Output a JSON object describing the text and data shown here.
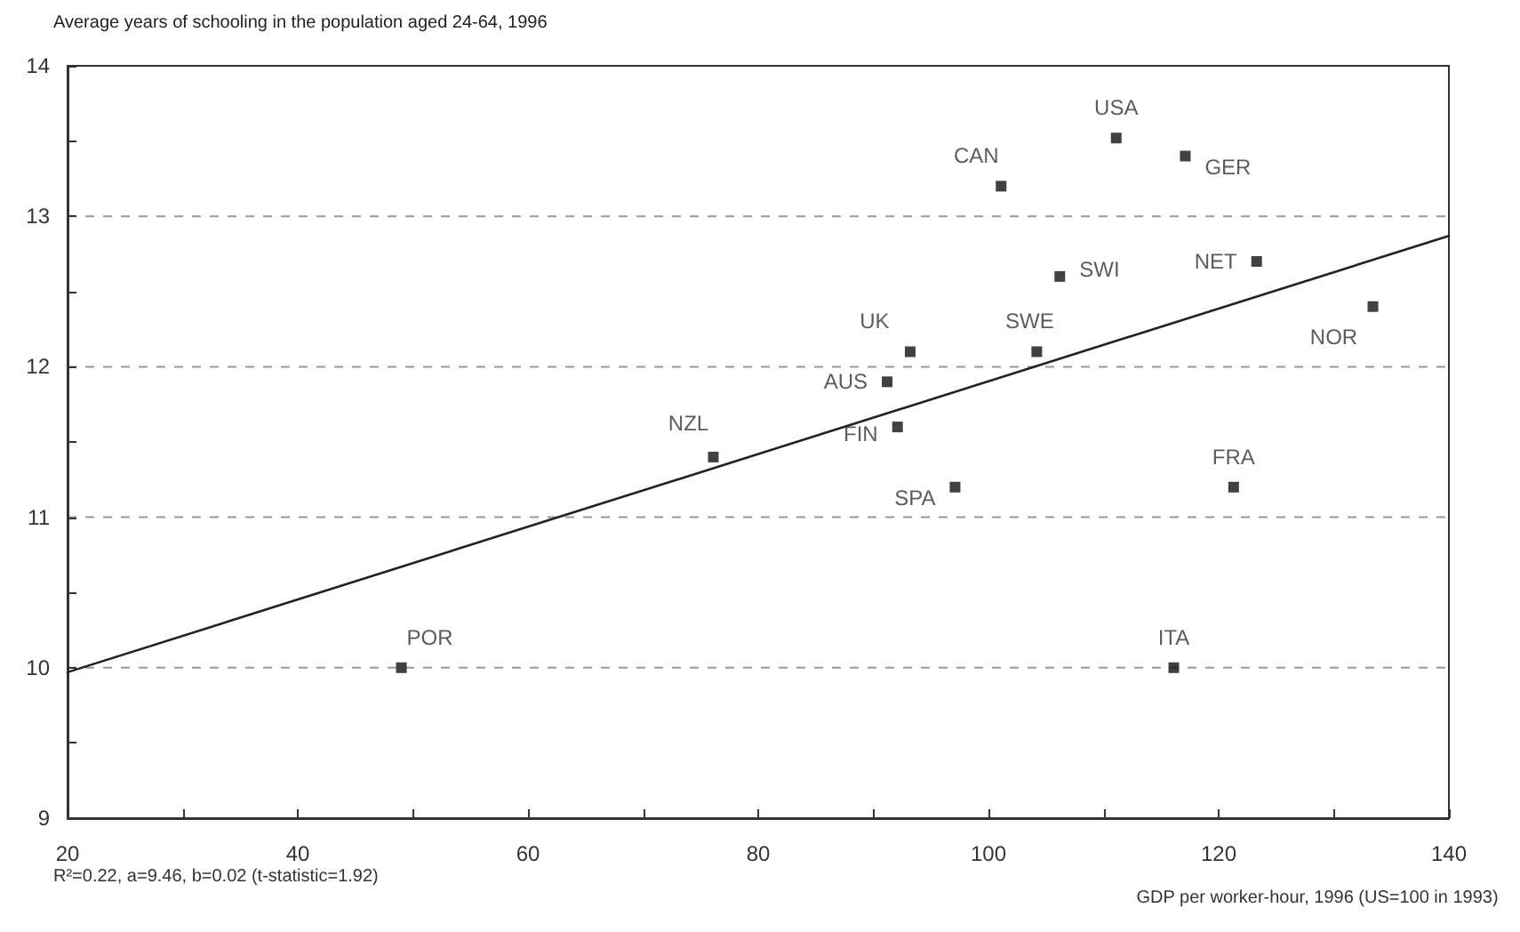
{
  "chart_data": {
    "type": "scatter",
    "ylabel": "Average years of schooling in the population aged 24-64, 1996",
    "xlabel": "GDP per worker-hour, 1996 (US=100 in 1993)",
    "annotations": [
      "R²=0.22, a=9.46, b=0.02 (t-statistic=1.92)"
    ],
    "xlim": [
      20,
      140
    ],
    "ylim": [
      9,
      14
    ],
    "xticks": [
      20,
      {
        "value": 30,
        "label": null
      },
      40,
      {
        "value": 50,
        "label": null
      },
      60,
      {
        "value": 70,
        "label": null
      },
      80,
      {
        "value": 90,
        "label": null
      },
      100,
      {
        "value": 110,
        "label": null
      },
      120,
      {
        "value": 130,
        "label": null
      },
      140
    ],
    "yticks": [
      9,
      {
        "value": 9.5,
        "label": null
      },
      10,
      {
        "value": 10.5,
        "label": null
      },
      11,
      {
        "value": 11.5,
        "label": null
      },
      12,
      {
        "value": 12.5,
        "label": null
      },
      13,
      {
        "value": 13.5,
        "label": null
      },
      14
    ],
    "grid": "y",
    "marker": "square",
    "series": [
      {
        "color": "#111111",
        "x": [
          111.1,
          101.1,
          117.1,
          106.2,
          123.3,
          133.4,
          93.2,
          104.2,
          91.2,
          92.1,
          76.1,
          97.1,
          121.3,
          49.0,
          116.1
        ],
        "values": [
          13.52,
          13.2,
          13.4,
          12.6,
          12.7,
          12.4,
          12.1,
          12.1,
          11.9,
          11.6,
          11.4,
          11.2,
          11.2,
          10.0,
          10.0
        ],
        "value_labels": [
          "USA",
          "CAN",
          "GER",
          "SWI",
          "NET",
          "NOR",
          "UK",
          "SWE",
          "AUS",
          "FIN",
          "NZL",
          "SPA",
          "FRA",
          "POR",
          "ITA"
        ]
      },
      {
        "type": "line",
        "color": "#222222",
        "marker": "none",
        "x": [
          20,
          140
        ],
        "values": [
          9.97,
          12.87
        ]
      }
    ]
  }
}
